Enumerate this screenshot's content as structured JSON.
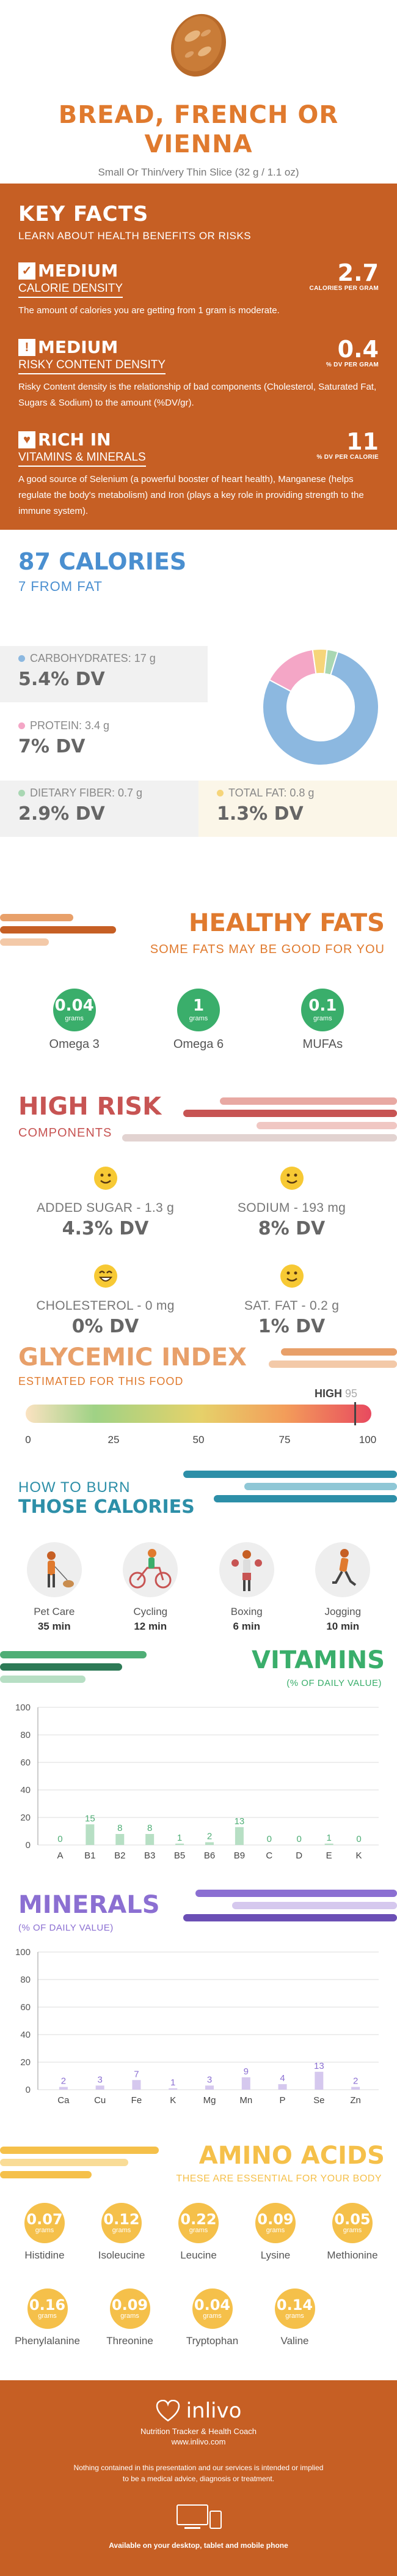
{
  "header": {
    "title_line1": "BREAD, FRENCH OR",
    "title_line2": "VIENNA",
    "serving": "Small Or Thin/very Thin Slice (32 g / 1.1 oz)"
  },
  "key_facts": {
    "title": "KEY FACTS",
    "subtitle": "LEARN ABOUT HEALTH BENEFITS OR RISKS",
    "items": [
      {
        "icon": "check-icon",
        "level": "MEDIUM",
        "label": "CALORIE DENSITY",
        "value": "2.7",
        "unit": "CALORIES PER GRAM",
        "desc": "The amount of calories you are getting from 1 gram is moderate."
      },
      {
        "icon": "warning-icon",
        "level": "MEDIUM",
        "label": "RISKY CONTENT DENSITY",
        "value": "0.4",
        "unit": "% DV PER GRAM",
        "desc": "Risky Content density is the relationship of bad components (Cholesterol, Saturated Fat, Sugars & Sodium) to the amount (%DV/gr)."
      },
      {
        "icon": "heart-icon",
        "level": "RICH IN",
        "label": "VITAMINS & MINERALS",
        "value": "11",
        "unit": "% DV PER CALORIE",
        "desc": "A good source of Selenium (a powerful booster of heart health), Manganese (helps regulate the body's metabolism) and Iron (plays a key role in providing strength to the immune system)."
      }
    ]
  },
  "calories": {
    "title": "87 CALORIES",
    "subtitle": "7 FROM FAT",
    "nutrients": [
      {
        "label": "CARBOHYDRATES: 17 g",
        "dv": "5.4% DV",
        "color": "#8CB8E0"
      },
      {
        "label": "PROTEIN: 3.4 g",
        "dv": "7% DV",
        "color": "#F4A6C6"
      },
      {
        "label": "DIETARY FIBER: 0.7 g",
        "dv": "2.9% DV",
        "color": "#A9D7B3"
      },
      {
        "label": "TOTAL FAT: 0.8 g",
        "dv": "1.3% DV",
        "color": "#F6D57A"
      }
    ],
    "donut": [
      {
        "name": "carbs",
        "value": 78,
        "color": "#8CB8E0"
      },
      {
        "name": "protein",
        "value": 15,
        "color": "#F4A6C6"
      },
      {
        "name": "fat",
        "value": 4,
        "color": "#F6D57A"
      },
      {
        "name": "fiber",
        "value": 3,
        "color": "#A9D7B3"
      }
    ]
  },
  "healthy_fats": {
    "title": "HEALTHY FATS",
    "subtitle": "SOME FATS MAY BE GOOD FOR YOU",
    "items": [
      {
        "value": "0.04",
        "unit": "grams",
        "name": "Omega 3"
      },
      {
        "value": "1",
        "unit": "grams",
        "name": "Omega 6"
      },
      {
        "value": "0.1",
        "unit": "grams",
        "name": "MUFAs"
      }
    ]
  },
  "high_risk": {
    "title": "HIGH RISK",
    "subtitle": "COMPONENTS",
    "items": [
      {
        "label": "ADDED SUGAR - 1.3 g",
        "dv": "4.3% DV"
      },
      {
        "label": "SODIUM - 193 mg",
        "dv": "8% DV"
      },
      {
        "label": "CHOLESTEROL - 0 mg",
        "dv": "0% DV"
      },
      {
        "label": "SAT. FAT - 0.2 g",
        "dv": "1% DV"
      }
    ]
  },
  "glycemic": {
    "title": "GLYCEMIC INDEX",
    "subtitle": "ESTIMATED FOR THIS FOOD",
    "level": "HIGH",
    "value": 95,
    "value_label": "95",
    "ticks": [
      "0",
      "25",
      "50",
      "75",
      "100"
    ]
  },
  "burn": {
    "title1": "HOW TO BURN",
    "title2": "THOSE CALORIES",
    "items": [
      {
        "name": "Pet Care",
        "time": "35 min"
      },
      {
        "name": "Cycling",
        "time": "12 min"
      },
      {
        "name": "Boxing",
        "time": "6 min"
      },
      {
        "name": "Jogging",
        "time": "10 min"
      }
    ]
  },
  "vitamins": {
    "title": "VITAMINS",
    "subtitle": "(% OF DAILY VALUE)"
  },
  "minerals": {
    "title": "MINERALS",
    "subtitle": "(% OF DAILY VALUE)"
  },
  "chart_data": [
    {
      "type": "bar",
      "title": "VITAMINS",
      "ylabel": "(% OF DAILY VALUE)",
      "ylim": [
        0,
        100
      ],
      "yticks": [
        "0",
        "20",
        "40",
        "60",
        "80",
        "100"
      ],
      "categories": [
        "A",
        "B1",
        "B2",
        "B3",
        "B5",
        "B6",
        "B9",
        "C",
        "D",
        "E",
        "K"
      ],
      "values": [
        0,
        15,
        8,
        8,
        1,
        2,
        13,
        0,
        0,
        1,
        0
      ],
      "labels": [
        "0",
        "15",
        "8",
        "8",
        "1",
        "2",
        "13",
        "0",
        "0",
        "1",
        "0"
      ],
      "color": "#B7DFC4",
      "label_color": "#4FAE76"
    },
    {
      "type": "bar",
      "title": "MINERALS",
      "ylabel": "(% OF DAILY VALUE)",
      "ylim": [
        0,
        100
      ],
      "yticks": [
        "0",
        "20",
        "40",
        "60",
        "80",
        "100"
      ],
      "categories": [
        "Ca",
        "Cu",
        "Fe",
        "K",
        "Mg",
        "Mn",
        "P",
        "Se",
        "Zn"
      ],
      "values": [
        2,
        3,
        7,
        1,
        3,
        9,
        4,
        13,
        2
      ],
      "labels": [
        "2",
        "3",
        "7",
        "1",
        "3",
        "9",
        "4",
        "13",
        "2"
      ],
      "color": "#D5C8EE",
      "label_color": "#8B6FD2"
    }
  ],
  "amino": {
    "title": "AMINO ACIDS",
    "subtitle": "THESE ARE ESSENTIAL FOR YOUR BODY",
    "row1": [
      {
        "value": "0.07",
        "unit": "grams",
        "name": "Histidine"
      },
      {
        "value": "0.12",
        "unit": "grams",
        "name": "Isoleucine"
      },
      {
        "value": "0.22",
        "unit": "grams",
        "name": "Leucine"
      },
      {
        "value": "0.09",
        "unit": "grams",
        "name": "Lysine"
      },
      {
        "value": "0.05",
        "unit": "grams",
        "name": "Methionine"
      }
    ],
    "row2": [
      {
        "value": "0.16",
        "unit": "grams",
        "name": "Phenylalanine"
      },
      {
        "value": "0.09",
        "unit": "grams",
        "name": "Threonine"
      },
      {
        "value": "0.04",
        "unit": "grams",
        "name": "Tryptophan"
      },
      {
        "value": "0.14",
        "unit": "grams",
        "name": "Valine"
      }
    ]
  },
  "footer": {
    "brand": "inlivo",
    "tagline1": "Nutrition Tracker & Health Coach",
    "tagline2": "www.inlivo.com",
    "disclaimer1": "Nothing contained in this presentation and our services is intended or implied",
    "disclaimer2": "to be a medical advice, diagnosis or treatment.",
    "available": "Available on your desktop, tablet and mobile phone"
  },
  "colors": {
    "orange": "#E07A2E",
    "rust": "#C65F24",
    "blue": "#4A8FD0",
    "green": "#3AAE6B",
    "red": "#C75453",
    "purple": "#8B6FD2",
    "yellow": "#F5C04A",
    "teal": "#2D8FA8"
  }
}
